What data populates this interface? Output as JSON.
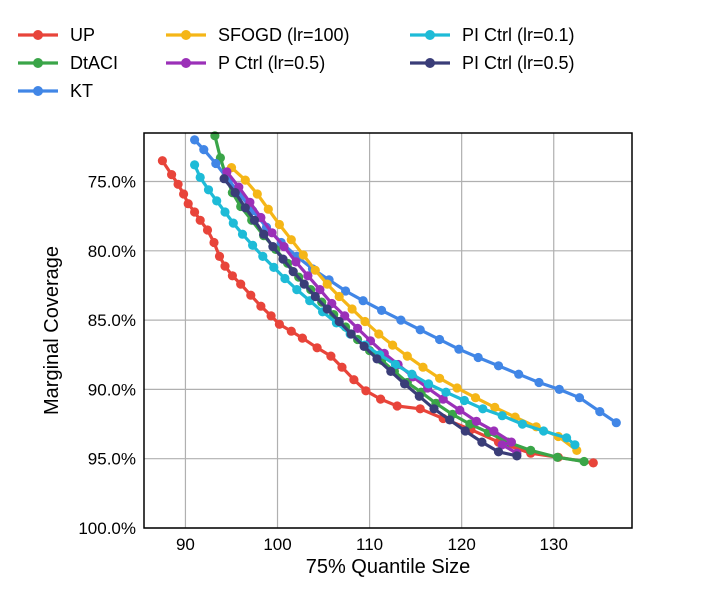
{
  "chart_data": {
    "type": "line",
    "xlabel": "75% Quantile Size",
    "ylabel": "Marginal Coverage",
    "xlim": [
      85.5,
      138.5
    ],
    "ylim": [
      100,
      71.5
    ],
    "y_inverted": true,
    "x_ticks": [
      90,
      100,
      110,
      120,
      130
    ],
    "x_tick_labels": [
      "90",
      "100",
      "110",
      "120",
      "130"
    ],
    "y_ticks": [
      75,
      80,
      85,
      90,
      95,
      100
    ],
    "y_tick_labels": [
      "75.0%",
      "80.0%",
      "85.0%",
      "90.0%",
      "95.0%",
      "100.0%"
    ],
    "grid": true,
    "legend_position": "top, above plot, 3 columns",
    "series": [
      {
        "name": "UP",
        "color": "#e8443a",
        "points": [
          [
            87.5,
            73.5
          ],
          [
            88.5,
            74.5
          ],
          [
            89.2,
            75.2
          ],
          [
            89.8,
            75.9
          ],
          [
            90.3,
            76.6
          ],
          [
            91.0,
            77.2
          ],
          [
            91.6,
            77.8
          ],
          [
            92.4,
            78.5
          ],
          [
            93.1,
            79.4
          ],
          [
            93.7,
            80.4
          ],
          [
            94.3,
            81.1
          ],
          [
            95.1,
            81.8
          ],
          [
            96.0,
            82.4
          ],
          [
            97.1,
            83.2
          ],
          [
            98.2,
            84.0
          ],
          [
            99.3,
            84.7
          ],
          [
            100.2,
            85.3
          ],
          [
            101.5,
            85.8
          ],
          [
            102.7,
            86.3
          ],
          [
            104.3,
            87.0
          ],
          [
            105.8,
            87.6
          ],
          [
            107.0,
            88.4
          ],
          [
            108.3,
            89.3
          ],
          [
            109.6,
            90.1
          ],
          [
            111.2,
            90.7
          ],
          [
            113.0,
            91.2
          ],
          [
            115.5,
            91.4
          ],
          [
            118.0,
            92.1
          ],
          [
            121.0,
            92.9
          ],
          [
            124.0,
            93.8
          ],
          [
            127.5,
            94.6
          ],
          [
            130.5,
            94.9
          ],
          [
            134.3,
            95.3
          ]
        ]
      },
      {
        "name": "DtACI",
        "color": "#3aa548",
        "points": [
          [
            93.2,
            71.7
          ],
          [
            93.8,
            73.3
          ],
          [
            94.4,
            74.6
          ],
          [
            95.1,
            75.8
          ],
          [
            96.0,
            76.8
          ],
          [
            97.2,
            77.8
          ],
          [
            98.5,
            78.9
          ],
          [
            99.8,
            79.9
          ],
          [
            101.1,
            80.9
          ],
          [
            102.3,
            81.9
          ],
          [
            103.6,
            82.8
          ],
          [
            104.8,
            83.7
          ],
          [
            106.1,
            84.6
          ],
          [
            107.4,
            85.5
          ],
          [
            108.7,
            86.4
          ],
          [
            110.0,
            87.2
          ],
          [
            111.3,
            87.9
          ],
          [
            112.7,
            88.7
          ],
          [
            114.1,
            89.5
          ],
          [
            115.6,
            90.2
          ],
          [
            117.2,
            91.0
          ],
          [
            119.0,
            91.8
          ],
          [
            120.9,
            92.5
          ],
          [
            122.9,
            93.1
          ],
          [
            125.0,
            93.8
          ],
          [
            127.5,
            94.4
          ],
          [
            130.4,
            94.9
          ],
          [
            133.3,
            95.2
          ]
        ]
      },
      {
        "name": "KT",
        "color": "#4186e6",
        "points": [
          [
            91.0,
            72.0
          ],
          [
            92.0,
            72.7
          ],
          [
            93.3,
            73.7
          ],
          [
            94.7,
            74.9
          ],
          [
            96.0,
            76.0
          ],
          [
            97.3,
            77.1
          ],
          [
            98.8,
            78.3
          ],
          [
            100.4,
            79.4
          ],
          [
            102.1,
            80.4
          ],
          [
            103.8,
            81.3
          ],
          [
            105.6,
            82.1
          ],
          [
            107.4,
            82.9
          ],
          [
            109.3,
            83.6
          ],
          [
            111.3,
            84.3
          ],
          [
            113.4,
            85.0
          ],
          [
            115.5,
            85.7
          ],
          [
            117.6,
            86.4
          ],
          [
            119.7,
            87.1
          ],
          [
            121.8,
            87.7
          ],
          [
            124.0,
            88.3
          ],
          [
            126.2,
            88.9
          ],
          [
            128.4,
            89.5
          ],
          [
            130.6,
            90.0
          ],
          [
            132.8,
            90.6
          ],
          [
            135.0,
            91.6
          ],
          [
            136.8,
            92.4
          ]
        ]
      },
      {
        "name": "SFOGD (lr=100)",
        "color": "#f5b617",
        "points": [
          [
            95.0,
            74.0
          ],
          [
            96.5,
            74.9
          ],
          [
            97.8,
            75.9
          ],
          [
            99.0,
            77.0
          ],
          [
            100.2,
            78.1
          ],
          [
            101.5,
            79.2
          ],
          [
            102.8,
            80.3
          ],
          [
            104.1,
            81.4
          ],
          [
            105.4,
            82.4
          ],
          [
            106.7,
            83.3
          ],
          [
            108.1,
            84.2
          ],
          [
            109.5,
            85.1
          ],
          [
            111.0,
            86.0
          ],
          [
            112.5,
            86.8
          ],
          [
            114.1,
            87.6
          ],
          [
            115.8,
            88.4
          ],
          [
            117.6,
            89.2
          ],
          [
            119.5,
            89.9
          ],
          [
            121.5,
            90.6
          ],
          [
            123.6,
            91.3
          ],
          [
            125.8,
            92.0
          ],
          [
            128.1,
            92.7
          ],
          [
            130.5,
            93.4
          ],
          [
            132.5,
            94.4
          ]
        ]
      },
      {
        "name": "P Ctrl (lr=0.5)",
        "color": "#9b30b8",
        "points": [
          [
            94.5,
            74.3
          ],
          [
            95.8,
            75.4
          ],
          [
            97.0,
            76.5
          ],
          [
            98.2,
            77.6
          ],
          [
            99.4,
            78.7
          ],
          [
            100.7,
            79.7
          ],
          [
            102.0,
            80.8
          ],
          [
            103.3,
            81.8
          ],
          [
            104.6,
            82.8
          ],
          [
            105.9,
            83.8
          ],
          [
            107.3,
            84.7
          ],
          [
            108.7,
            85.6
          ],
          [
            110.1,
            86.5
          ],
          [
            111.6,
            87.4
          ],
          [
            113.1,
            88.2
          ],
          [
            114.7,
            89.1
          ],
          [
            116.3,
            89.9
          ],
          [
            118.0,
            90.7
          ],
          [
            119.8,
            91.5
          ],
          [
            121.6,
            92.3
          ],
          [
            123.5,
            93.0
          ],
          [
            125.4,
            93.8
          ],
          [
            124.4,
            94.0
          ],
          [
            126.0,
            94.6
          ]
        ]
      },
      {
        "name": "PI Ctrl (lr=0.1)",
        "color": "#1ebbd7",
        "points": [
          [
            91.0,
            73.8
          ],
          [
            91.6,
            74.7
          ],
          [
            92.5,
            75.6
          ],
          [
            93.4,
            76.4
          ],
          [
            94.3,
            77.2
          ],
          [
            95.2,
            78.0
          ],
          [
            96.2,
            78.8
          ],
          [
            97.3,
            79.6
          ],
          [
            98.4,
            80.4
          ],
          [
            99.6,
            81.2
          ],
          [
            100.8,
            82.0
          ],
          [
            102.1,
            82.8
          ],
          [
            103.5,
            83.6
          ],
          [
            104.9,
            84.4
          ],
          [
            106.4,
            85.2
          ],
          [
            107.9,
            86.0
          ],
          [
            109.5,
            86.8
          ],
          [
            111.1,
            87.5
          ],
          [
            112.8,
            88.2
          ],
          [
            114.6,
            88.9
          ],
          [
            116.4,
            89.6
          ],
          [
            118.3,
            90.2
          ],
          [
            120.3,
            90.8
          ],
          [
            122.3,
            91.4
          ],
          [
            124.4,
            91.9
          ],
          [
            126.6,
            92.5
          ],
          [
            128.9,
            93.0
          ],
          [
            131.4,
            93.5
          ],
          [
            132.3,
            94.0
          ]
        ]
      },
      {
        "name": "PI Ctrl (lr=0.5)",
        "color": "#3a3d78",
        "points": [
          [
            94.2,
            74.8
          ],
          [
            95.4,
            75.8
          ],
          [
            96.5,
            76.9
          ],
          [
            97.5,
            77.8
          ],
          [
            98.5,
            78.8
          ],
          [
            99.5,
            79.7
          ],
          [
            100.6,
            80.6
          ],
          [
            101.7,
            81.5
          ],
          [
            102.9,
            82.4
          ],
          [
            104.1,
            83.3
          ],
          [
            105.4,
            84.2
          ],
          [
            106.7,
            85.1
          ],
          [
            108.0,
            86.0
          ],
          [
            109.4,
            86.9
          ],
          [
            110.8,
            87.8
          ],
          [
            112.3,
            88.7
          ],
          [
            113.8,
            89.6
          ],
          [
            115.4,
            90.5
          ],
          [
            117.0,
            91.4
          ],
          [
            118.7,
            92.2
          ],
          [
            120.4,
            93.0
          ],
          [
            122.2,
            93.8
          ],
          [
            124.0,
            94.5
          ],
          [
            126.0,
            94.8
          ]
        ]
      }
    ]
  }
}
